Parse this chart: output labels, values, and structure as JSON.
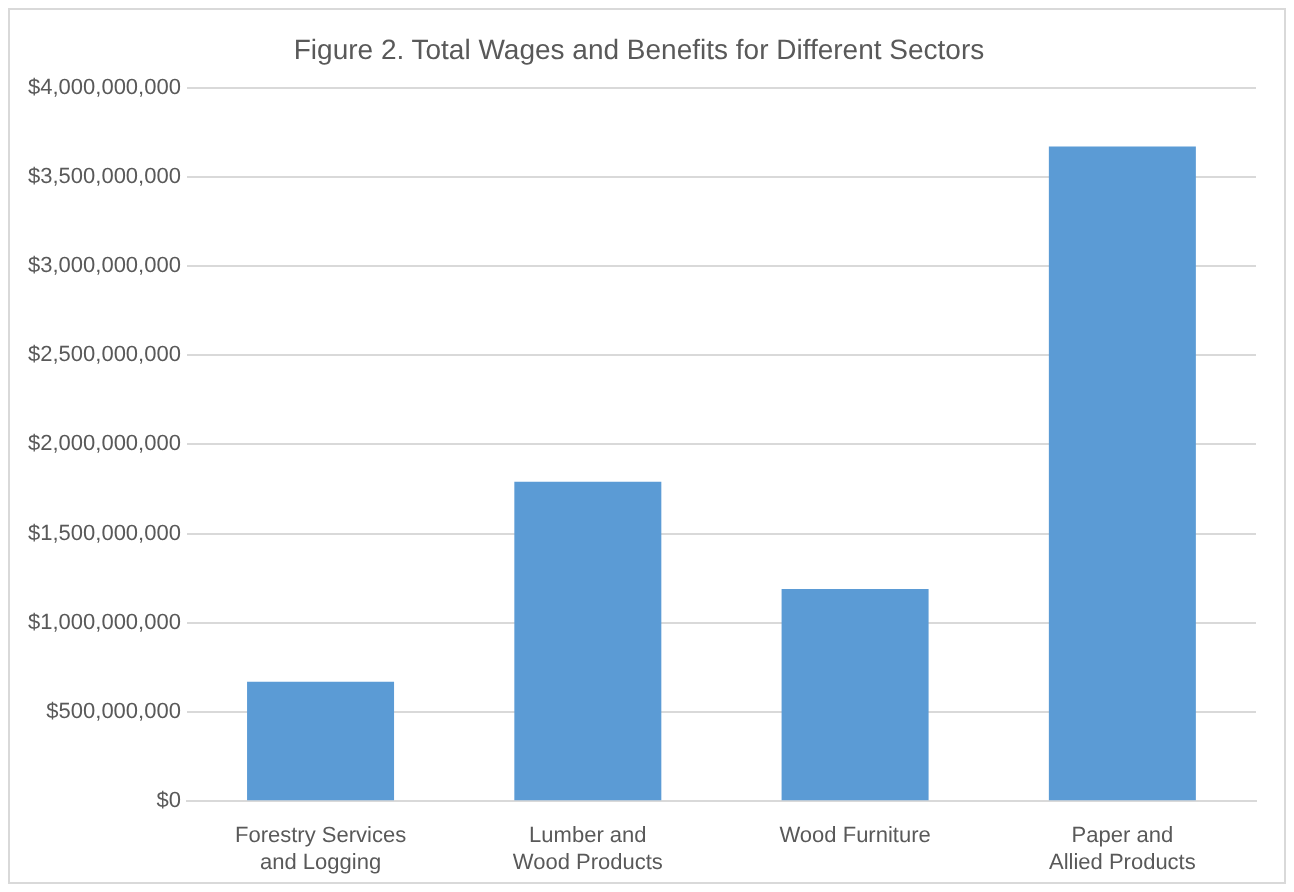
{
  "chart_data": {
    "type": "bar",
    "title": "Figure 2. Total Wages and Benefits for Different Sectors",
    "categories": [
      "Forestry Services and Logging",
      "Lumber and Wood Products",
      "Wood Furniture",
      "Paper and Allied Products"
    ],
    "values": [
      670000000,
      1790000000,
      1190000000,
      3670000000
    ],
    "color": "#5b9bd5",
    "ylim": [
      0,
      4000000000
    ],
    "yticks": [
      {
        "value": 0,
        "label": "$0"
      },
      {
        "value": 500000000,
        "label": "$500,000,000"
      },
      {
        "value": 1000000000,
        "label": "$1,000,000,000"
      },
      {
        "value": 1500000000,
        "label": "$1,500,000,000"
      },
      {
        "value": 2000000000,
        "label": "$2,000,000,000"
      },
      {
        "value": 2500000000,
        "label": "$2,500,000,000"
      },
      {
        "value": 3000000000,
        "label": "$3,000,000,000"
      },
      {
        "value": 3500000000,
        "label": "$3,500,000,000"
      },
      {
        "value": 4000000000,
        "label": "$4,000,000,000"
      }
    ],
    "grid": true,
    "legend": false
  }
}
